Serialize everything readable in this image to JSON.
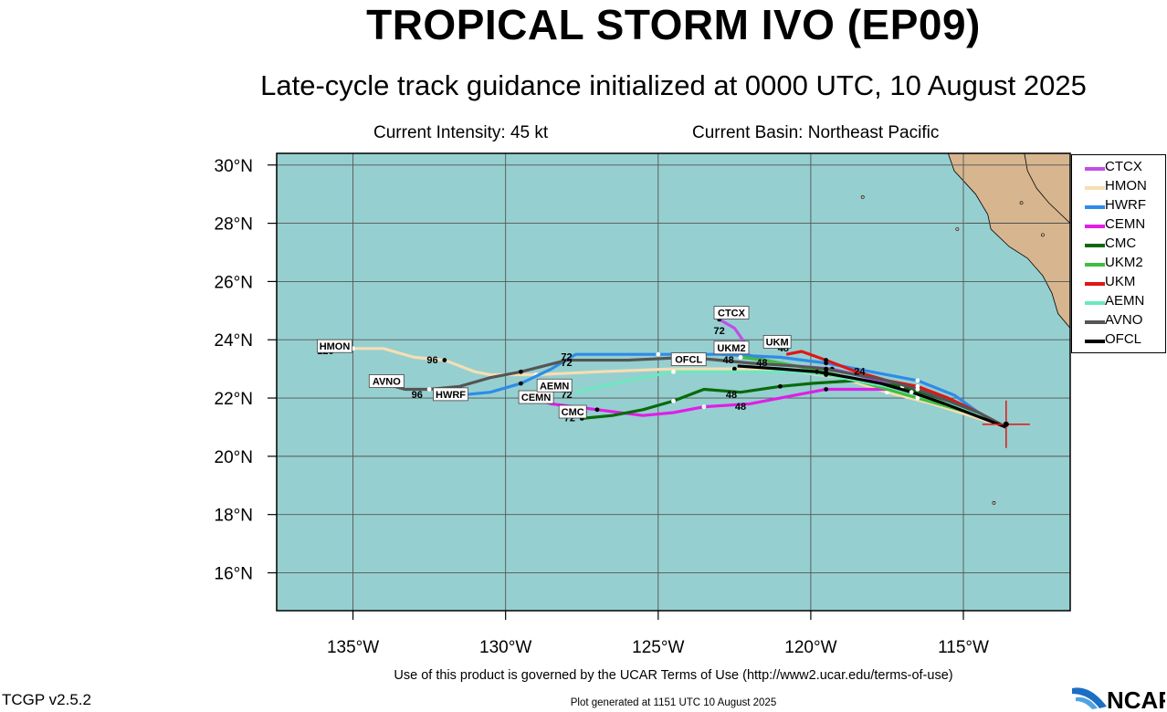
{
  "header": {
    "title": "TROPICAL STORM IVO (EP09)",
    "subtitle": "Late-cycle track guidance initialized at 0000 UTC, 10 August 2025",
    "intensity": "Current Intensity: 45 kt",
    "basin": "Current Basin: Northeast Pacific"
  },
  "footer": {
    "terms": "Use of this product is governed by the UCAR Terms of Use (http://www2.ucar.edu/terms-of-use)",
    "generated": "Plot generated at 1151 UTC   10 August 2025",
    "version": "TCGP v2.5.2",
    "logo_text": "NCAR"
  },
  "colors": {
    "ocean": "#96cfd0",
    "land": "#d6b58f",
    "grid": "#555555",
    "current_position": "#e02020"
  },
  "map": {
    "lon_range": [
      -137.5,
      -111.5
    ],
    "lat_range": [
      14.7,
      30.4
    ],
    "lon_ticks": [
      -135,
      -130,
      -125,
      -120,
      -115
    ],
    "lat_ticks": [
      16,
      18,
      20,
      22,
      24,
      26,
      28,
      30
    ],
    "lon_tick_labels": [
      "135°W",
      "130°W",
      "125°W",
      "120°W",
      "115°W"
    ],
    "lat_tick_labels": [
      "16°N",
      "18°N",
      "20°N",
      "22°N",
      "24°N",
      "26°N",
      "28°N",
      "30°N"
    ],
    "current_position": [
      -113.6,
      21.1
    ]
  },
  "models": [
    {
      "name": "CTCX",
      "color": "#c04ee8",
      "track": [
        [
          -113.6,
          21.0
        ],
        [
          -114.5,
          21.4
        ],
        [
          -115.5,
          21.8
        ],
        [
          -116.6,
          22.2
        ],
        [
          -117.5,
          22.5
        ],
        [
          -118.5,
          22.8
        ],
        [
          -119.3,
          23.0
        ],
        [
          -120.5,
          23.1
        ],
        [
          -121.5,
          23.3
        ],
        [
          -122.1,
          23.5
        ],
        [
          -122.1,
          23.8
        ],
        [
          -122.5,
          24.4
        ],
        [
          -123.0,
          24.7
        ]
      ],
      "labels": [
        {
          "text": "72",
          "at": [
            -123.0,
            24.2
          ]
        }
      ],
      "tag_at": [
        -122.6,
        24.9
      ]
    },
    {
      "name": "HMON",
      "color": "#f5deb3",
      "track": [
        [
          -113.6,
          21.0
        ],
        [
          -114.8,
          21.4
        ],
        [
          -116.0,
          21.8
        ],
        [
          -117.5,
          22.2
        ],
        [
          -119.0,
          22.7
        ],
        [
          -120.5,
          22.9
        ],
        [
          -122.5,
          23.0
        ],
        [
          -124.5,
          23.0
        ],
        [
          -127.0,
          22.9
        ],
        [
          -129.0,
          22.8
        ],
        [
          -130.5,
          22.8
        ],
        [
          -131.0,
          22.9
        ],
        [
          -132.0,
          23.3
        ],
        [
          -133.0,
          23.4
        ],
        [
          -134.0,
          23.7
        ],
        [
          -135.0,
          23.7
        ],
        [
          -136.0,
          23.7
        ]
      ],
      "labels": [
        {
          "text": "96",
          "at": [
            -132.4,
            23.2
          ]
        },
        {
          "text": "120",
          "at": [
            -135.9,
            23.5
          ]
        }
      ],
      "tag_at": [
        -135.6,
        23.75
      ]
    },
    {
      "name": "HWRF",
      "color": "#2e8ce6",
      "track": [
        [
          -113.6,
          21.0
        ],
        [
          -114.5,
          21.5
        ],
        [
          -115.3,
          22.1
        ],
        [
          -116.5,
          22.6
        ],
        [
          -117.5,
          22.8
        ],
        [
          -118.5,
          23.0
        ],
        [
          -119.5,
          23.2
        ],
        [
          -121.0,
          23.4
        ],
        [
          -123.0,
          23.5
        ],
        [
          -125.0,
          23.5
        ],
        [
          -127.7,
          23.5
        ],
        [
          -128.5,
          23.0
        ],
        [
          -129.5,
          22.5
        ],
        [
          -130.5,
          22.2
        ],
        [
          -131.5,
          22.1
        ],
        [
          -132.0,
          22.1
        ]
      ],
      "labels": [
        {
          "text": "72",
          "at": [
            -128.0,
            23.3
          ]
        },
        {
          "text": "96",
          "at": [
            -132.9,
            22.0
          ]
        }
      ],
      "tag_at": [
        -131.8,
        22.1
      ]
    },
    {
      "name": "CEMN",
      "color": "#e01ee6",
      "track": [
        [
          -113.6,
          21.0
        ],
        [
          -114.5,
          21.4
        ],
        [
          -115.5,
          21.8
        ],
        [
          -116.5,
          22.1
        ],
        [
          -117.5,
          22.3
        ],
        [
          -118.5,
          22.3
        ],
        [
          -119.5,
          22.3
        ],
        [
          -120.5,
          22.1
        ],
        [
          -122.0,
          21.8
        ],
        [
          -123.5,
          21.7
        ],
        [
          -124.5,
          21.5
        ],
        [
          -125.5,
          21.4
        ],
        [
          -127.0,
          21.6
        ],
        [
          -128.5,
          21.8
        ],
        [
          -129.5,
          22.1
        ]
      ],
      "labels": [
        {
          "text": "48",
          "at": [
            -122.3,
            21.6
          ]
        },
        {
          "text": "72",
          "at": [
            -127.5,
            21.5
          ]
        }
      ],
      "tag_at": [
        -129.0,
        22.0
      ]
    },
    {
      "name": "CMC",
      "color": "#0a6a0a",
      "track": [
        [
          -113.6,
          21.0
        ],
        [
          -114.8,
          21.6
        ],
        [
          -115.8,
          22.0
        ],
        [
          -117.0,
          22.4
        ],
        [
          -118.5,
          22.6
        ],
        [
          -120.0,
          22.5
        ],
        [
          -121.0,
          22.4
        ],
        [
          -122.3,
          22.2
        ],
        [
          -123.5,
          22.3
        ],
        [
          -124.5,
          21.9
        ],
        [
          -125.5,
          21.6
        ],
        [
          -126.5,
          21.4
        ],
        [
          -127.5,
          21.3
        ]
      ],
      "labels": [
        {
          "text": "48",
          "at": [
            -122.6,
            22.0
          ]
        },
        {
          "text": "72",
          "at": [
            -127.9,
            21.2
          ]
        }
      ],
      "tag_at": [
        -127.8,
        21.5
      ]
    },
    {
      "name": "UKM2",
      "color": "#3fbe3f",
      "track": [
        [
          -113.6,
          21.0
        ],
        [
          -114.5,
          21.4
        ],
        [
          -115.5,
          21.7
        ],
        [
          -116.5,
          22.0
        ],
        [
          -117.5,
          22.3
        ],
        [
          -118.5,
          22.6
        ],
        [
          -119.5,
          22.9
        ],
        [
          -120.5,
          23.1
        ],
        [
          -121.5,
          23.3
        ],
        [
          -122.3,
          23.4
        ]
      ],
      "labels": [
        {
          "text": "48",
          "at": [
            -122.7,
            23.2
          ]
        }
      ],
      "tag_at": [
        -122.6,
        23.7
      ]
    },
    {
      "name": "UKM",
      "color": "#e01616",
      "track": [
        [
          -113.6,
          21.0
        ],
        [
          -114.5,
          21.5
        ],
        [
          -115.5,
          22.0
        ],
        [
          -116.5,
          22.4
        ],
        [
          -117.5,
          22.6
        ],
        [
          -118.5,
          22.9
        ],
        [
          -119.5,
          23.3
        ],
        [
          -120.3,
          23.6
        ],
        [
          -120.8,
          23.5
        ]
      ],
      "labels": [
        {
          "text": "24",
          "at": [
            -118.4,
            22.8
          ]
        },
        {
          "text": "48",
          "at": [
            -120.9,
            23.6
          ]
        }
      ],
      "tag_at": [
        -121.1,
        23.9
      ]
    },
    {
      "name": "AEMN",
      "color": "#6de8c0",
      "track": [
        [
          -113.6,
          21.0
        ],
        [
          -114.5,
          21.4
        ],
        [
          -115.5,
          21.8
        ],
        [
          -116.5,
          22.1
        ],
        [
          -117.5,
          22.4
        ],
        [
          -118.5,
          22.6
        ],
        [
          -119.5,
          22.8
        ],
        [
          -120.5,
          22.9
        ],
        [
          -122.5,
          22.9
        ],
        [
          -124.5,
          22.9
        ],
        [
          -126.0,
          22.6
        ],
        [
          -127.7,
          22.2
        ]
      ],
      "labels": [
        {
          "text": "72",
          "at": [
            -128.0,
            22.0
          ]
        }
      ],
      "tag_at": [
        -128.4,
        22.4
      ]
    },
    {
      "name": "AVNO",
      "color": "#555555",
      "track": [
        [
          -113.6,
          21.0
        ],
        [
          -114.5,
          21.5
        ],
        [
          -115.5,
          21.9
        ],
        [
          -116.5,
          22.3
        ],
        [
          -117.5,
          22.6
        ],
        [
          -118.5,
          22.8
        ],
        [
          -119.5,
          23.0
        ],
        [
          -120.5,
          23.1
        ],
        [
          -122.0,
          23.2
        ],
        [
          -124.0,
          23.4
        ],
        [
          -126.0,
          23.3
        ],
        [
          -128.0,
          23.3
        ],
        [
          -129.5,
          22.9
        ],
        [
          -130.5,
          22.7
        ],
        [
          -131.5,
          22.4
        ],
        [
          -132.5,
          22.3
        ],
        [
          -133.3,
          22.3
        ],
        [
          -134.0,
          22.5
        ]
      ],
      "labels": [
        {
          "text": "72",
          "at": [
            -128.0,
            23.1
          ]
        }
      ],
      "tag_at": [
        -133.9,
        22.55
      ]
    },
    {
      "name": "OFCL",
      "color": "#000000",
      "track": [
        [
          -113.6,
          21.0
        ],
        [
          -114.6,
          21.4
        ],
        [
          -115.6,
          21.8
        ],
        [
          -116.7,
          22.2
        ],
        [
          -117.7,
          22.5
        ],
        [
          -118.7,
          22.7
        ],
        [
          -119.8,
          22.9
        ],
        [
          -121.0,
          23.0
        ],
        [
          -122.4,
          23.1
        ]
      ],
      "labels": [
        {
          "text": "48",
          "at": [
            -121.6,
            23.1
          ]
        }
      ],
      "tag_at": [
        -124.0,
        23.3
      ]
    }
  ]
}
